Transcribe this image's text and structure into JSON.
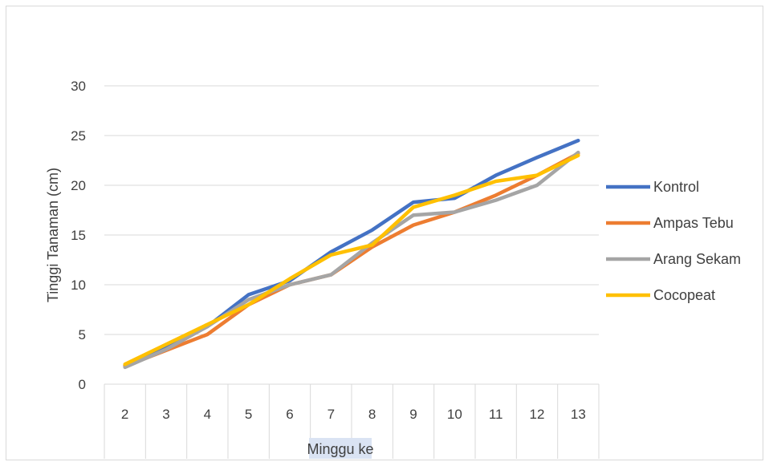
{
  "chart_data": {
    "type": "line",
    "title": "",
    "xlabel": "Minggu ke",
    "ylabel": "Tinggi Tanaman (cm)",
    "categories": [
      "2",
      "3",
      "4",
      "5",
      "6",
      "7",
      "8",
      "9",
      "10",
      "11",
      "12",
      "13"
    ],
    "ylim": [
      0,
      30
    ],
    "yticks": [
      "0",
      "5",
      "10",
      "15",
      "20",
      "25",
      "30"
    ],
    "grid": true,
    "legend_position": "right",
    "series": [
      {
        "name": "Kontrol",
        "color": "#4472c4",
        "values": [
          1.9,
          3.8,
          5.8,
          9.0,
          10.4,
          13.3,
          15.5,
          18.3,
          18.7,
          21.0,
          22.8,
          24.5
        ]
      },
      {
        "name": "Ampas Tebu",
        "color": "#ed7d31",
        "values": [
          1.8,
          3.4,
          5.0,
          8.0,
          10.0,
          11.0,
          13.8,
          16.0,
          17.3,
          19.0,
          21.0,
          23.2
        ]
      },
      {
        "name": "Arang Sekam",
        "color": "#a5a5a5",
        "values": [
          1.7,
          3.5,
          5.8,
          8.5,
          10.0,
          11.0,
          14.2,
          17.0,
          17.3,
          18.5,
          20.0,
          23.3
        ]
      },
      {
        "name": "Cocopeat",
        "color": "#ffc000",
        "values": [
          2.0,
          4.0,
          6.0,
          8.0,
          10.6,
          13.0,
          14.0,
          17.8,
          19.0,
          20.4,
          21.0,
          23.0
        ]
      }
    ]
  }
}
